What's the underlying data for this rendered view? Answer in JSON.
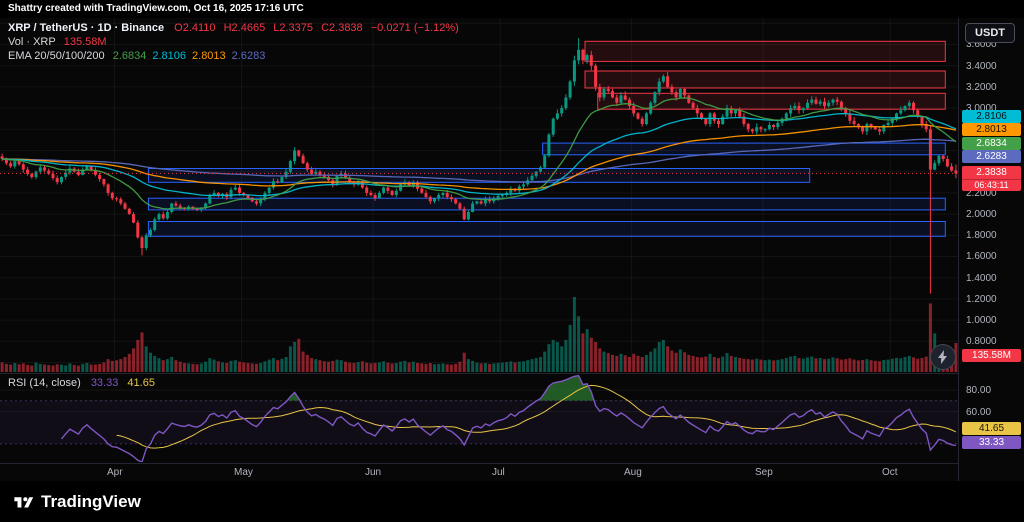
{
  "credit_bar": {
    "text": "Shattry created with TradingView.com, Oct 16, 2025 17:16 UTC"
  },
  "header": {
    "symbol_text": "XRP / TetherUS · 1D · Binance",
    "ohlc": {
      "o": "O2.4110",
      "h": "H2.4665",
      "l": "L2.3375",
      "c": "C2.3838",
      "change": "−0.0271 (−1.12%)"
    },
    "volume": {
      "label": "Vol · XRP",
      "value": "135.58M"
    },
    "ema": {
      "label": "EMA 20/50/100/200",
      "values": [
        {
          "text": "2.6834",
          "color": "#43a047"
        },
        {
          "text": "2.8106",
          "color": "#00bcd4"
        },
        {
          "text": "2.8013",
          "color": "#ff9800"
        },
        {
          "text": "2.6283",
          "color": "#5c6bc0"
        }
      ]
    }
  },
  "toolbar": {
    "currency_label": "USDT"
  },
  "price_axis": {
    "labels": [
      "3.6000",
      "3.4000",
      "3.2000",
      "3.0000",
      "2.2000",
      "2.0000",
      "1.8000",
      "1.6000",
      "1.4000",
      "1.2000",
      "1.0000",
      "0.8000"
    ],
    "ema_badges": [
      {
        "text": "2.8106",
        "price": 2.8106,
        "bg": "#00bcd4",
        "fg": "#001318"
      },
      {
        "text": "2.8013",
        "price": 2.8013,
        "bg": "#ff9800",
        "fg": "#1a1000"
      },
      {
        "text": "2.6834",
        "price": 2.6834,
        "bg": "#43a047",
        "fg": "#ffffff"
      },
      {
        "text": "2.6283",
        "price": 2.6283,
        "bg": "#5c6bc0",
        "fg": "#ffffff"
      }
    ],
    "last_price_badge": {
      "text": "2.3838",
      "countdown": "06:43:11",
      "price": 2.3838,
      "bg": "#f23645",
      "fg": "#ffffff"
    },
    "volume_badge": {
      "text": "135.58M",
      "bg": "#f23645",
      "fg": "#ffffff"
    }
  },
  "rsi_pane": {
    "title": "RSI (14, close)",
    "rsi_value": "33.33",
    "ma_value": "41.65",
    "axis_labels": [
      {
        "text": "80.00",
        "value": 80
      },
      {
        "text": "60.00",
        "value": 60
      }
    ],
    "badges": [
      {
        "text": "41.65",
        "value": 41.65,
        "bg": "#e8c547",
        "fg": "#1a1500"
      },
      {
        "text": "33.33",
        "value": 33.33,
        "bg": "#7e57c2",
        "fg": "#ffffff"
      }
    ]
  },
  "branding": {
    "logo_text": "TradingView"
  },
  "chart_data": {
    "type": "candlestick",
    "title": "XRP / TetherUS · 1D · Binance",
    "interval": "1D",
    "ylim": [
      0.51,
      3.85
    ],
    "last_price": 2.3838,
    "candle_colors": {
      "up": "#089981",
      "down": "#f23645"
    },
    "zone_colors": {
      "supply": "#f23645",
      "demand": "#2962ff"
    },
    "months": [
      {
        "label": "Apr",
        "i": 27
      },
      {
        "label": "May",
        "i": 57
      },
      {
        "label": "Jun",
        "i": 88
      },
      {
        "label": "Jul",
        "i": 118
      },
      {
        "label": "Aug",
        "i": 149
      },
      {
        "label": "Sep",
        "i": 180
      },
      {
        "label": "Oct",
        "i": 210
      }
    ],
    "closes": [
      2.52,
      2.48,
      2.45,
      2.5,
      2.47,
      2.42,
      2.38,
      2.35,
      2.4,
      2.44,
      2.41,
      2.38,
      2.34,
      2.3,
      2.35,
      2.39,
      2.43,
      2.4,
      2.37,
      2.42,
      2.45,
      2.41,
      2.37,
      2.33,
      2.28,
      2.2,
      2.15,
      2.14,
      2.1,
      2.05,
      2.0,
      1.92,
      1.78,
      1.68,
      1.8,
      1.85,
      1.95,
      2.0,
      1.96,
      2.02,
      2.1,
      2.08,
      2.06,
      2.05,
      2.07,
      2.05,
      2.04,
      2.06,
      2.1,
      2.18,
      2.2,
      2.17,
      2.19,
      2.16,
      2.23,
      2.25,
      2.2,
      2.18,
      2.15,
      2.12,
      2.1,
      2.14,
      2.2,
      2.25,
      2.31,
      2.3,
      2.35,
      2.4,
      2.5,
      2.6,
      2.55,
      2.48,
      2.42,
      2.38,
      2.4,
      2.37,
      2.35,
      2.32,
      2.28,
      2.36,
      2.38,
      2.34,
      2.3,
      2.28,
      2.31,
      2.25,
      2.2,
      2.18,
      2.15,
      2.2,
      2.25,
      2.22,
      2.18,
      2.22,
      2.28,
      2.3,
      2.27,
      2.3,
      2.24,
      2.2,
      2.16,
      2.12,
      2.15,
      2.18,
      2.2,
      2.16,
      2.14,
      2.1,
      2.05,
      1.95,
      2.02,
      2.1,
      2.12,
      2.1,
      2.14,
      2.12,
      2.15,
      2.17,
      2.18,
      2.2,
      2.24,
      2.22,
      2.26,
      2.28,
      2.32,
      2.36,
      2.4,
      2.44,
      2.55,
      2.75,
      2.9,
      2.95,
      3.0,
      3.1,
      3.25,
      3.45,
      3.55,
      3.45,
      3.5,
      3.4,
      3.2,
      3.1,
      3.18,
      3.16,
      3.1,
      3.05,
      3.12,
      3.08,
      3.02,
      2.95,
      2.9,
      2.85,
      2.95,
      3.05,
      3.15,
      3.25,
      3.3,
      3.2,
      3.15,
      3.1,
      3.18,
      3.12,
      3.05,
      3.0,
      2.95,
      2.9,
      2.85,
      2.95,
      2.88,
      2.85,
      2.92,
      3.0,
      2.95,
      2.98,
      2.92,
      2.85,
      2.8,
      2.78,
      2.82,
      2.8,
      2.8,
      2.84,
      2.82,
      2.86,
      2.9,
      2.95,
      3.0,
      3.02,
      2.98,
      3.0,
      3.05,
      3.08,
      3.04,
      3.06,
      3.02,
      3.05,
      3.08,
      3.06,
      3.0,
      2.95,
      2.88,
      2.85,
      2.82,
      2.78,
      2.85,
      2.82,
      2.8,
      2.78,
      2.84,
      2.86,
      2.9,
      2.95,
      2.98,
      3.02,
      3.05,
      2.98,
      2.92,
      2.85,
      2.8,
      2.42,
      2.48,
      2.55,
      2.52,
      2.45,
      2.41,
      2.3838
    ],
    "volumes_m": [
      45,
      38,
      35,
      42,
      36,
      40,
      33,
      30,
      44,
      38,
      35,
      32,
      30,
      36,
      34,
      31,
      40,
      33,
      30,
      38,
      42,
      35,
      35,
      38,
      45,
      60,
      52,
      55,
      60,
      70,
      85,
      110,
      150,
      185,
      120,
      90,
      75,
      65,
      55,
      60,
      70,
      55,
      48,
      42,
      40,
      38,
      36,
      40,
      48,
      65,
      58,
      50,
      45,
      42,
      52,
      55,
      48,
      45,
      42,
      40,
      38,
      42,
      50,
      58,
      65,
      55,
      62,
      70,
      120,
      140,
      155,
      95,
      80,
      65,
      60,
      55,
      50,
      48,
      52,
      58,
      55,
      48,
      44,
      42,
      46,
      50,
      44,
      40,
      42,
      45,
      50,
      44,
      40,
      42,
      48,
      52,
      45,
      48,
      42,
      40,
      38,
      42,
      36,
      38,
      40,
      36,
      34,
      38,
      48,
      90,
      60,
      52,
      44,
      40,
      42,
      38,
      40,
      42,
      44,
      46,
      50,
      45,
      48,
      50,
      55,
      60,
      65,
      70,
      95,
      130,
      150,
      140,
      120,
      150,
      220,
      350,
      260,
      180,
      200,
      160,
      140,
      110,
      95,
      88,
      80,
      75,
      85,
      78,
      70,
      85,
      75,
      70,
      80,
      95,
      110,
      140,
      150,
      120,
      100,
      90,
      105,
      92,
      80,
      75,
      70,
      68,
      72,
      85,
      70,
      65,
      72,
      88,
      75,
      70,
      66,
      62,
      60,
      58,
      62,
      58,
      55,
      58,
      54,
      57,
      60,
      65,
      72,
      75,
      65,
      62,
      68,
      72,
      64,
      66,
      60,
      62,
      68,
      64,
      58,
      60,
      64,
      58,
      54,
      56,
      60,
      55,
      52,
      50,
      56,
      58,
      62,
      66,
      64,
      70,
      75,
      68,
      62,
      66,
      72,
      320,
      180,
      120,
      95,
      80,
      70,
      135.58
    ],
    "overrides": [
      {
        "i": 33,
        "low": 1.61
      },
      {
        "i": 136,
        "high": 3.66
      },
      {
        "i": 219,
        "low": 1.25
      },
      {
        "i": 225,
        "open": 2.411,
        "high": 2.4665,
        "low": 2.3375,
        "close": 2.3838
      }
    ],
    "supply_zones": [
      {
        "i0": 138,
        "i1": 223,
        "top": 3.63,
        "bottom": 3.44
      },
      {
        "i0": 138,
        "i1": 223,
        "top": 3.35,
        "bottom": 3.19
      },
      {
        "i0": 141,
        "i1": 223,
        "top": 3.14,
        "bottom": 2.99
      }
    ],
    "demand_zones": [
      {
        "i0": 128,
        "i1": 223,
        "top": 2.67,
        "bottom": 2.56
      },
      {
        "i0": 35,
        "i1": 191,
        "top": 2.43,
        "bottom": 2.3
      },
      {
        "i0": 35,
        "i1": 223,
        "top": 2.15,
        "bottom": 2.04
      },
      {
        "i0": 35,
        "i1": 223,
        "top": 1.93,
        "bottom": 1.79
      }
    ],
    "ema": {
      "periods": [
        20,
        50,
        100,
        200
      ],
      "colors": [
        "#43a047",
        "#00bcd4",
        "#ff9800",
        "#5c6bc0"
      ],
      "last_values": [
        2.6834,
        2.8106,
        2.8013,
        2.6283
      ]
    },
    "rsi": {
      "period": 14,
      "last": 33.33,
      "ma_period": 14,
      "ma_last": 41.65,
      "bands": [
        30,
        70
      ],
      "ylim": [
        13,
        95
      ],
      "line_color": "#7e57c2",
      "ma_color": "#e8c547",
      "band_fill": "rgba(126,87,194,0.08)",
      "overbought_fill": "#2e7d32"
    }
  }
}
